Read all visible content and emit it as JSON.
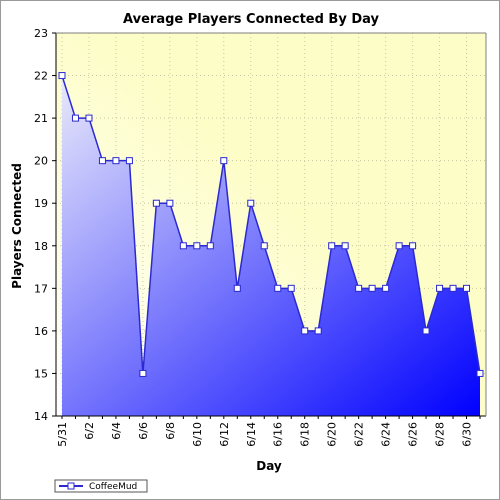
{
  "chart_data": {
    "type": "area",
    "title": "Average Players Connected By Day",
    "xlabel": "Day",
    "ylabel": "Players Connected",
    "ylim": [
      14,
      23
    ],
    "yticks": [
      14,
      15,
      16,
      17,
      18,
      19,
      20,
      21,
      22,
      23
    ],
    "x": [
      "5/31",
      "6/1",
      "6/2",
      "6/3",
      "6/4",
      "6/5",
      "6/6",
      "6/7",
      "6/8",
      "6/9",
      "6/10",
      "6/11",
      "6/12",
      "6/13",
      "6/14",
      "6/15",
      "6/16",
      "6/17",
      "6/18",
      "6/19",
      "6/20",
      "6/21",
      "6/22",
      "6/23",
      "6/24",
      "6/25",
      "6/26",
      "6/27",
      "6/28",
      "6/29",
      "6/30",
      "7/1"
    ],
    "xtick_labels": [
      "5/31",
      "6/2",
      "6/4",
      "6/6",
      "6/8",
      "6/10",
      "6/12",
      "6/14",
      "6/16",
      "6/18",
      "6/20",
      "6/22",
      "6/24",
      "6/26",
      "6/28",
      "6/30"
    ],
    "series": [
      {
        "name": "CoffeeMud",
        "values": [
          22,
          21,
          21,
          20,
          20,
          20,
          15,
          19,
          19,
          18,
          18,
          18,
          20,
          17,
          19,
          18,
          17,
          17,
          16,
          16,
          18,
          18,
          17,
          17,
          17,
          18,
          18,
          16,
          17,
          17,
          17,
          15
        ]
      }
    ],
    "grid": true,
    "legend_position": "bottom-left",
    "colors": {
      "line": "#2a2ad0",
      "fill_start": "#e9e9fb",
      "fill_end": "#0000ff",
      "plot_bg_light": "#ffffff",
      "plot_bg_yellow": "#fdfdc8",
      "grid": "#c8c8a0"
    }
  }
}
